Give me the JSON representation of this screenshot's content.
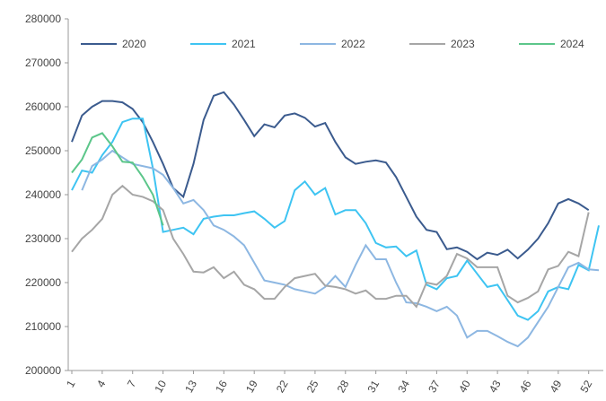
{
  "chart_data": {
    "type": "line",
    "x": [
      1,
      2,
      3,
      4,
      5,
      6,
      7,
      8,
      9,
      10,
      11,
      12,
      13,
      14,
      15,
      16,
      17,
      18,
      19,
      20,
      21,
      22,
      23,
      24,
      25,
      26,
      27,
      28,
      29,
      30,
      31,
      32,
      33,
      34,
      35,
      36,
      37,
      38,
      39,
      40,
      41,
      42,
      43,
      44,
      45,
      46,
      47,
      48,
      49,
      50,
      51,
      52,
      53
    ],
    "xlim": [
      1,
      53
    ],
    "xticks": [
      1,
      4,
      7,
      10,
      13,
      16,
      19,
      22,
      25,
      28,
      31,
      34,
      37,
      40,
      43,
      46,
      49,
      52
    ],
    "ylim": [
      200000,
      280000
    ],
    "yticks": [
      200000,
      210000,
      220000,
      230000,
      240000,
      250000,
      260000,
      270000,
      280000
    ],
    "legend": "top",
    "series": [
      {
        "name": "2020",
        "color": "#3b5b8e",
        "values": [
          252000,
          258000,
          260000,
          261300,
          261300,
          261000,
          259500,
          256500,
          252000,
          247000,
          241500,
          239500,
          247000,
          257000,
          262500,
          263300,
          260500,
          257000,
          253300,
          256000,
          255300,
          258000,
          258500,
          257500,
          255500,
          256300,
          252000,
          248500,
          247000,
          247500,
          247800,
          247300,
          244000,
          239500,
          235000,
          232000,
          231500,
          227600,
          228000,
          227000,
          225300,
          226800,
          226300,
          227500,
          225500,
          227500,
          230000,
          233500,
          238000,
          239000,
          238000,
          236500,
          null
        ]
      },
      {
        "name": "2021",
        "color": "#3ec4f2",
        "values": [
          241000,
          245500,
          245000,
          249000,
          252000,
          256500,
          257300,
          257300,
          246000,
          231500,
          232000,
          232500,
          231000,
          234500,
          235000,
          235300,
          235300,
          235800,
          236200,
          234500,
          232500,
          234000,
          241000,
          243000,
          240000,
          241500,
          235500,
          236500,
          236500,
          233500,
          229000,
          228000,
          228200,
          226000,
          227300,
          219500,
          218500,
          221000,
          221500,
          225000,
          222000,
          219000,
          219500,
          216000,
          212500,
          211500,
          213500,
          218000,
          219000,
          218500,
          224000,
          222800,
          233000
        ]
      },
      {
        "name": "2022",
        "color": "#8db7e2",
        "values": [
          null,
          241000,
          246500,
          248000,
          250000,
          248500,
          247000,
          246500,
          246000,
          244500,
          241500,
          238000,
          238800,
          236500,
          233000,
          232000,
          230500,
          228500,
          224500,
          220500,
          220000,
          219500,
          218500,
          218000,
          217500,
          219000,
          221500,
          219000,
          224000,
          228500,
          225300,
          225300,
          220000,
          215500,
          215300,
          214500,
          213500,
          214500,
          212500,
          207500,
          209000,
          209000,
          207800,
          206500,
          205500,
          207500,
          211000,
          214500,
          219000,
          223500,
          224500,
          223000,
          222800
        ]
      },
      {
        "name": "2023",
        "color": "#a6a6a6",
        "values": [
          227000,
          230000,
          232000,
          234500,
          240000,
          242000,
          240000,
          239500,
          238500,
          236500,
          230000,
          226500,
          222500,
          222300,
          223500,
          221000,
          222500,
          219500,
          218500,
          216300,
          216300,
          219000,
          221000,
          221500,
          222000,
          219300,
          219000,
          218500,
          217500,
          218200,
          216300,
          216300,
          217000,
          217000,
          214500,
          220000,
          219500,
          221500,
          226500,
          225500,
          223500,
          223500,
          223500,
          217000,
          215500,
          216500,
          218000,
          223000,
          223800,
          227000,
          226000,
          236000,
          null
        ]
      },
      {
        "name": "2024",
        "color": "#5cc68a",
        "values": [
          245000,
          248000,
          253000,
          254000,
          251000,
          247500,
          247300,
          244000,
          240000,
          233000,
          null,
          null,
          null,
          null,
          null,
          null,
          null,
          null,
          null,
          null,
          null,
          null,
          null,
          null,
          null,
          null,
          null,
          null,
          null,
          null,
          null,
          null,
          null,
          null,
          null,
          null,
          null,
          null,
          null,
          null,
          null,
          null,
          null,
          null,
          null,
          null,
          null,
          null,
          null,
          null,
          null,
          null,
          null
        ]
      }
    ]
  }
}
